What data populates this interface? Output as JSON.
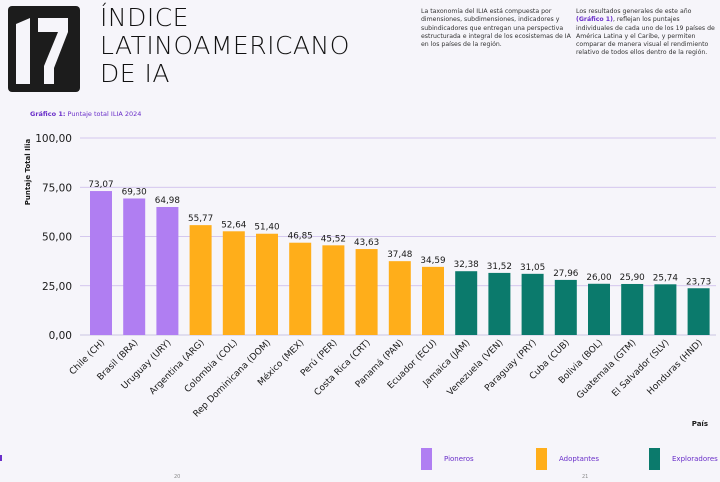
{
  "header": {
    "title_lines": [
      "ÍNDICE",
      "LATINOAMERICANO",
      "DE IA"
    ],
    "intro_text": "La taxonomía del ILIA está compuesta por dimensiones, subdimensiones, indicadores y subindicadores que entregan una perspectiva estructurada e integral de los ecosistemas de IA en los países de la región.",
    "intro2_prefix": "Los resultados generales de este año ",
    "intro2_highlight": "(Gráfico 1)",
    "intro2_suffix": ", reflejan los puntajes individuales de cada uno de los 19 países de América Latina y el Caribe, y permiten comparar de manera visual el rendimiento relativo de todos ellos dentro de la región."
  },
  "caption": {
    "label": "Gráfico 1:",
    "text": " Puntaje total ILIA 2024"
  },
  "chart_data": {
    "type": "bar",
    "title": "Puntaje total ILIA 2024",
    "xlabel": "País",
    "ylabel": "Puntaje Total Ilia",
    "ylim": [
      0,
      100
    ],
    "yticks": [
      "0,00",
      "25,00",
      "50,00",
      "75,00",
      "100,00"
    ],
    "ytick_values": [
      0,
      25,
      50,
      75,
      100
    ],
    "categories": [
      "Chile (CH)",
      "Brasil (BRA)",
      "Uruguay (URY)",
      "Argentina (ARG)",
      "Colombia (COL)",
      "Rep Dominicana (DOM)",
      "México (MEX)",
      "Perú (PER)",
      "Costa Rica (CRT)",
      "Panamá (PAN)",
      "Ecuador (ECU)",
      "Jamaica (JAM)",
      "Venezuela (VEN)",
      "Paraguay (PRY)",
      "Cuba (CUB)",
      "Bolivia (BOL)",
      "Guatemala (GTM)",
      "El Salvador (SLV)",
      "Honduras (HND)"
    ],
    "values": [
      73.07,
      69.3,
      64.98,
      55.77,
      52.64,
      51.4,
      46.85,
      45.52,
      43.63,
      37.48,
      34.59,
      32.38,
      31.52,
      31.05,
      27.96,
      26.0,
      25.9,
      25.74,
      23.73
    ],
    "value_labels": [
      "73,07",
      "69,30",
      "64,98",
      "55,77",
      "52,64",
      "51,40",
      "46,85",
      "45,52",
      "43,63",
      "37,48",
      "34,59",
      "32,38",
      "31,52",
      "31,05",
      "27,96",
      "26,00",
      "25,90",
      "25,74",
      "23,73"
    ],
    "groups": [
      "Pioneros",
      "Pioneros",
      "Pioneros",
      "Adoptantes",
      "Adoptantes",
      "Adoptantes",
      "Adoptantes",
      "Adoptantes",
      "Adoptantes",
      "Adoptantes",
      "Adoptantes",
      "Exploradores",
      "Exploradores",
      "Exploradores",
      "Exploradores",
      "Exploradores",
      "Exploradores",
      "Exploradores",
      "Exploradores"
    ],
    "legend": [
      {
        "name": "Pioneros",
        "color": "#b07ef2"
      },
      {
        "name": "Adoptantes",
        "color": "#ffae1a"
      },
      {
        "name": "Exploradores",
        "color": "#0b7a6c"
      }
    ]
  },
  "footer": {
    "page_left": "20",
    "page_right": "21"
  }
}
